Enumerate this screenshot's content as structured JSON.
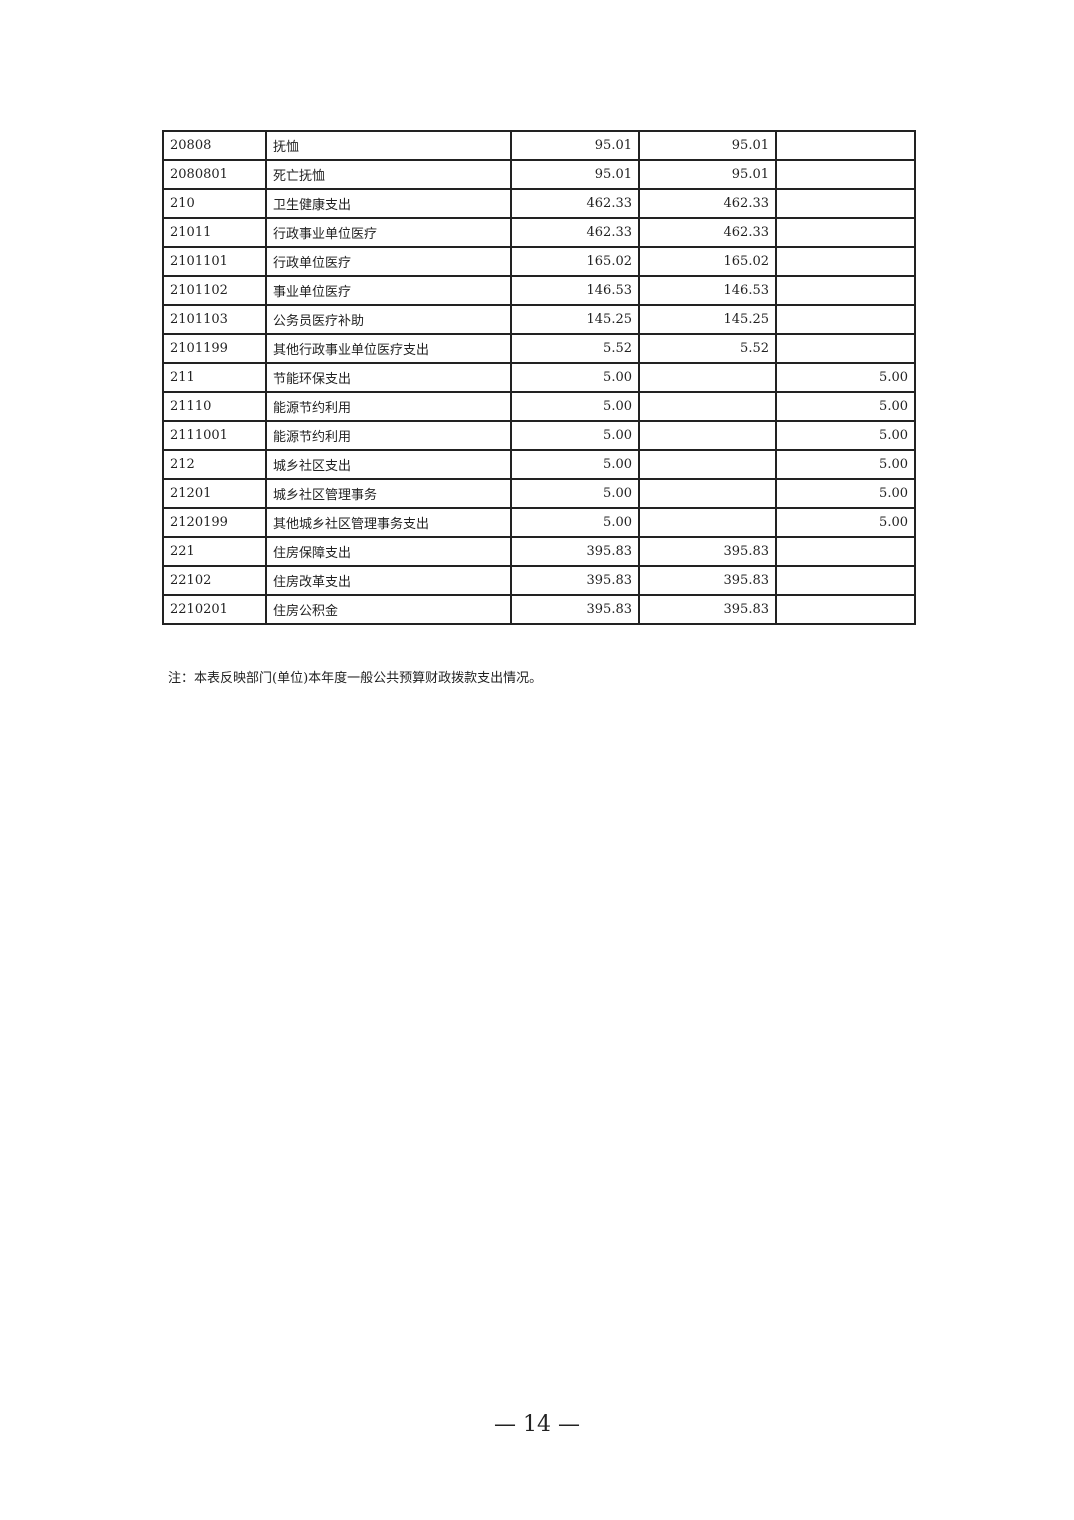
{
  "table": {
    "rows": [
      [
        "20808",
        "抚恤",
        "95.01",
        "95.01",
        ""
      ],
      [
        "2080801",
        "死亡抚恤",
        "95.01",
        "95.01",
        ""
      ],
      [
        "210",
        "卫生健康支出",
        "462.33",
        "462.33",
        ""
      ],
      [
        "21011",
        "行政事业单位医疗",
        "462.33",
        "462.33",
        ""
      ],
      [
        "2101101",
        "行政单位医疗",
        "165.02",
        "165.02",
        ""
      ],
      [
        "2101102",
        "事业单位医疗",
        "146.53",
        "146.53",
        ""
      ],
      [
        "2101103",
        "公务员医疗补助",
        "145.25",
        "145.25",
        ""
      ],
      [
        "2101199",
        "其他行政事业单位医疗支出",
        "5.52",
        "5.52",
        ""
      ],
      [
        "211",
        "节能环保支出",
        "5.00",
        "",
        "5.00"
      ],
      [
        "21110",
        "能源节约利用",
        "5.00",
        "",
        "5.00"
      ],
      [
        "2111001",
        "能源节约利用",
        "5.00",
        "",
        "5.00"
      ],
      [
        "212",
        "城乡社区支出",
        "5.00",
        "",
        "5.00"
      ],
      [
        "21201",
        "城乡社区管理事务",
        "5.00",
        "",
        "5.00"
      ],
      [
        "2120199",
        "其他城乡社区管理事务支出",
        "5.00",
        "",
        "5.00"
      ],
      [
        "221",
        "住房保障支出",
        "395.83",
        "395.83",
        ""
      ],
      [
        "22102",
        "住房改革支出",
        "395.83",
        "395.83",
        ""
      ],
      [
        "2210201",
        "住房公积金",
        "395.83",
        "395.83",
        ""
      ]
    ]
  },
  "note": "注：本表反映部门(单位)本年度一般公共预算财政拨款支出情况。",
  "page_number": "— 14 —"
}
